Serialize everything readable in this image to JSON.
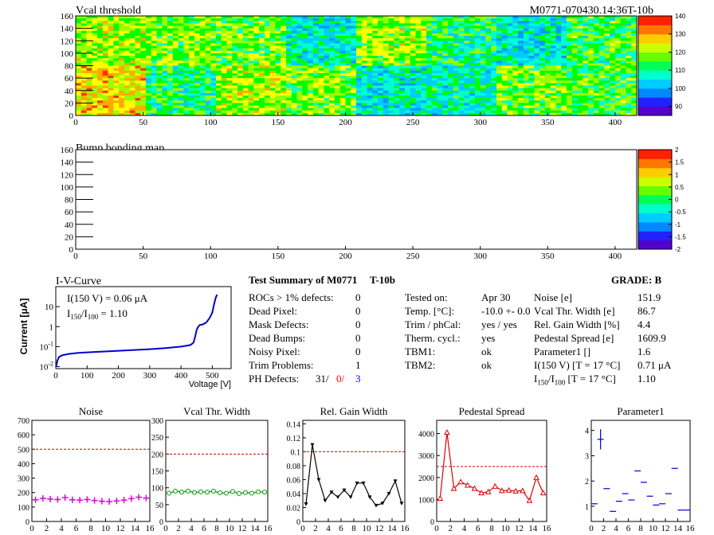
{
  "module_id": "M0771-070430.14:36T-10b",
  "vcal_map": {
    "title": "Vcal threshold",
    "xlim": [
      0,
      416
    ],
    "ylim": [
      0,
      160
    ],
    "xticks": [
      0,
      50,
      100,
      150,
      200,
      250,
      300,
      350,
      400
    ],
    "yticks": [
      0,
      20,
      40,
      60,
      80,
      100,
      120,
      140,
      160
    ],
    "colorbar_ticks": [
      90,
      100,
      110,
      120,
      130,
      140
    ],
    "colorbar_range": [
      85,
      140
    ],
    "colors": [
      "#6600cc",
      "#0000ff",
      "#0099ff",
      "#00ccff",
      "#00ffcc",
      "#00ff00",
      "#99ff00",
      "#ffff00",
      "#ffaa00",
      "#ff3300"
    ]
  },
  "bump_map": {
    "title": "Bump bonding map",
    "xlim": [
      0,
      416
    ],
    "ylim": [
      0,
      160
    ],
    "xticks": [
      0,
      50,
      100,
      150,
      200,
      250,
      300,
      350,
      400
    ],
    "yticks": [
      0,
      20,
      40,
      60,
      80,
      100,
      120,
      140,
      160
    ],
    "colorbar_ticks": [
      -2,
      -1.5,
      -1,
      -0.5,
      0,
      0.5,
      1,
      1.5,
      2
    ],
    "colorbar_range": [
      -2,
      2
    ]
  },
  "iv_curve": {
    "title": "I-V-Curve",
    "ylabel": "Current [μA]",
    "xlabel": "Voltage [V]",
    "xlim": [
      0,
      560
    ],
    "xticks": [
      0,
      100,
      200,
      300,
      400,
      500
    ],
    "ylog": true,
    "ylim": [
      0.008,
      100
    ],
    "yticks": [
      "10^-2",
      "10^-1",
      "1",
      "10"
    ],
    "annotation_1": "I(150 V) = 0.06 μA",
    "annotation_2_a": "I",
    "annotation_2_sub1": "150",
    "annotation_2_b": "/I",
    "annotation_2_sub2": "100",
    "annotation_2_c": " =  1.10",
    "x": [
      1,
      5,
      10,
      20,
      40,
      60,
      80,
      100,
      150,
      200,
      250,
      300,
      350,
      400,
      430,
      440,
      445,
      450,
      455,
      460,
      470,
      480,
      490,
      495,
      500,
      505,
      510,
      515
    ],
    "y": [
      0.01,
      0.02,
      0.03,
      0.037,
      0.043,
      0.047,
      0.05,
      0.052,
      0.057,
      0.062,
      0.068,
      0.075,
      0.085,
      0.1,
      0.12,
      0.16,
      0.3,
      0.7,
      1.0,
      1.2,
      1.3,
      1.6,
      2.5,
      3.5,
      5,
      12,
      25,
      40
    ]
  },
  "summary": {
    "title": "Test Summary of M0771",
    "tag": "T-10b",
    "grade": "GRADE:  B",
    "defects": [
      {
        "label": "ROCs > 1% defects:",
        "value": "0"
      },
      {
        "label": "Dead Pixel:",
        "value": "0"
      },
      {
        "label": "Mask Defects:",
        "value": "0"
      },
      {
        "label": "Dead Bumps:",
        "value": "0"
      },
      {
        "label": "Noisy Pixel:",
        "value": "0"
      },
      {
        "label": "Trim Problems:",
        "value": "1"
      }
    ],
    "ph_label": "PH Defects:",
    "ph_v1": "31/",
    "ph_v2": "0/",
    "ph_v3": "3",
    "ph_v2_color": "#ff0000",
    "ph_v3_color": "#0000ff",
    "conditions": [
      {
        "label": "Tested on:",
        "value": "Apr 30"
      },
      {
        "label": "Temp. [°C]:",
        "value": "-10.0 +- 0.0"
      },
      {
        "label": "Trim / phCal:",
        "value": "yes / yes"
      },
      {
        "label": "Therm. cycl.:",
        "value": "yes"
      },
      {
        "label": "TBM1:",
        "value": "ok"
      },
      {
        "label": "TBM2:",
        "value": "ok"
      }
    ],
    "params": [
      {
        "label": "Noise [e]",
        "value": "151.9"
      },
      {
        "label": "Vcal Thr. Width [e]",
        "value": "86.7"
      },
      {
        "label": "Rel. Gain Width [%]",
        "value": "4.4"
      },
      {
        "label": "Pedestal Spread [e]",
        "value": "1609.9"
      },
      {
        "label": "Parameter1 []",
        "value": "1.6"
      },
      {
        "label": "I(150 V)  [T = 17 °C]",
        "value": "0.71 μA"
      }
    ],
    "ratio_a": "I",
    "ratio_sub1": "150",
    "ratio_b": "/I",
    "ratio_sub2": "100",
    "ratio_c": "  [T = 17 °C]",
    "ratio_value": "1.10"
  },
  "chart_data": [
    {
      "type": "scatter",
      "title": "Noise",
      "color": "#dd00dd",
      "marker": "plus",
      "xlim": [
        0,
        16
      ],
      "ylim": [
        0,
        700
      ],
      "threshold": 500,
      "xticks": [
        0,
        2,
        4,
        6,
        8,
        10,
        12,
        14,
        16
      ],
      "yticks": [
        0,
        100,
        200,
        300,
        400,
        500,
        600,
        700
      ],
      "x": [
        0,
        1,
        2,
        3,
        4,
        5,
        6,
        7,
        8,
        9,
        10,
        11,
        12,
        13,
        14,
        15
      ],
      "values": [
        150,
        160,
        155,
        152,
        165,
        150,
        148,
        152,
        145,
        140,
        138,
        142,
        148,
        158,
        168,
        162
      ]
    },
    {
      "type": "line",
      "title": "Vcal Thr. Width",
      "color": "#009900",
      "marker": "circle",
      "xlim": [
        0,
        16
      ],
      "ylim": [
        0,
        300
      ],
      "threshold": 200,
      "xticks": [
        0,
        2,
        4,
        6,
        8,
        10,
        12,
        14,
        16
      ],
      "yticks": [
        0,
        50,
        100,
        150,
        200,
        250,
        300
      ],
      "x": [
        0,
        1,
        2,
        3,
        4,
        5,
        6,
        7,
        8,
        9,
        10,
        11,
        12,
        13,
        14,
        15
      ],
      "values": [
        84,
        90,
        87,
        90,
        86,
        88,
        87,
        90,
        85,
        84,
        89,
        83,
        86,
        84,
        88,
        87
      ]
    },
    {
      "type": "line",
      "title": "Rel. Gain Width",
      "color": "#000000",
      "marker": "triangle-down",
      "xlim": [
        0,
        16
      ],
      "ylim": [
        0,
        0.145
      ],
      "threshold": 0.1,
      "xticks": [
        0,
        2,
        4,
        6,
        8,
        10,
        12,
        14,
        16
      ],
      "yticks": [
        0,
        0.02,
        0.04,
        0.06,
        0.08,
        0.1,
        0.12,
        0.14
      ],
      "x": [
        0,
        1,
        2,
        3,
        4,
        5,
        6,
        7,
        8,
        9,
        10,
        11,
        12,
        13,
        14,
        15
      ],
      "values": [
        0.025,
        0.11,
        0.06,
        0.03,
        0.042,
        0.035,
        0.045,
        0.035,
        0.055,
        0.055,
        0.035,
        0.023,
        0.026,
        0.04,
        0.058,
        0.026
      ]
    },
    {
      "type": "line",
      "title": "Pedestal Spread",
      "color": "#dd0000",
      "marker": "triangle-up",
      "xlim": [
        0,
        16
      ],
      "ylim": [
        0,
        4600
      ],
      "threshold": 2500,
      "xticks": [
        0,
        2,
        4,
        6,
        8,
        10,
        12,
        14,
        16
      ],
      "yticks": [
        0,
        1000,
        2000,
        3000,
        4000
      ],
      "x": [
        0,
        1,
        2,
        3,
        4,
        5,
        6,
        7,
        8,
        9,
        10,
        11,
        12,
        13,
        14,
        15
      ],
      "values": [
        1050,
        4050,
        1500,
        1800,
        1650,
        1500,
        1300,
        1350,
        1600,
        1400,
        1420,
        1380,
        1400,
        950,
        2000,
        1300
      ]
    },
    {
      "type": "scatter",
      "title": "Parameter1",
      "color": "#0000dd",
      "marker": "errorbar",
      "xlim": [
        0,
        16
      ],
      "ylim": [
        0.4,
        4.4
      ],
      "xticks": [
        0,
        2,
        4,
        6,
        8,
        10,
        12,
        14,
        16
      ],
      "yticks": [
        1,
        2,
        3,
        4
      ],
      "x": [
        0,
        1,
        2,
        3,
        4,
        5,
        6,
        7,
        8,
        9,
        10,
        11,
        12,
        13,
        14,
        15
      ],
      "values": [
        1.1,
        3.65,
        1.7,
        0.8,
        1.2,
        1.5,
        1.25,
        2.4,
        1.95,
        1.4,
        1.05,
        1.1,
        1.5,
        2.5,
        0.85,
        0.85
      ],
      "yerr": [
        0,
        0.4,
        0,
        0,
        0,
        0,
        0,
        0,
        0,
        0,
        0,
        0,
        0,
        0,
        0,
        0
      ]
    }
  ]
}
